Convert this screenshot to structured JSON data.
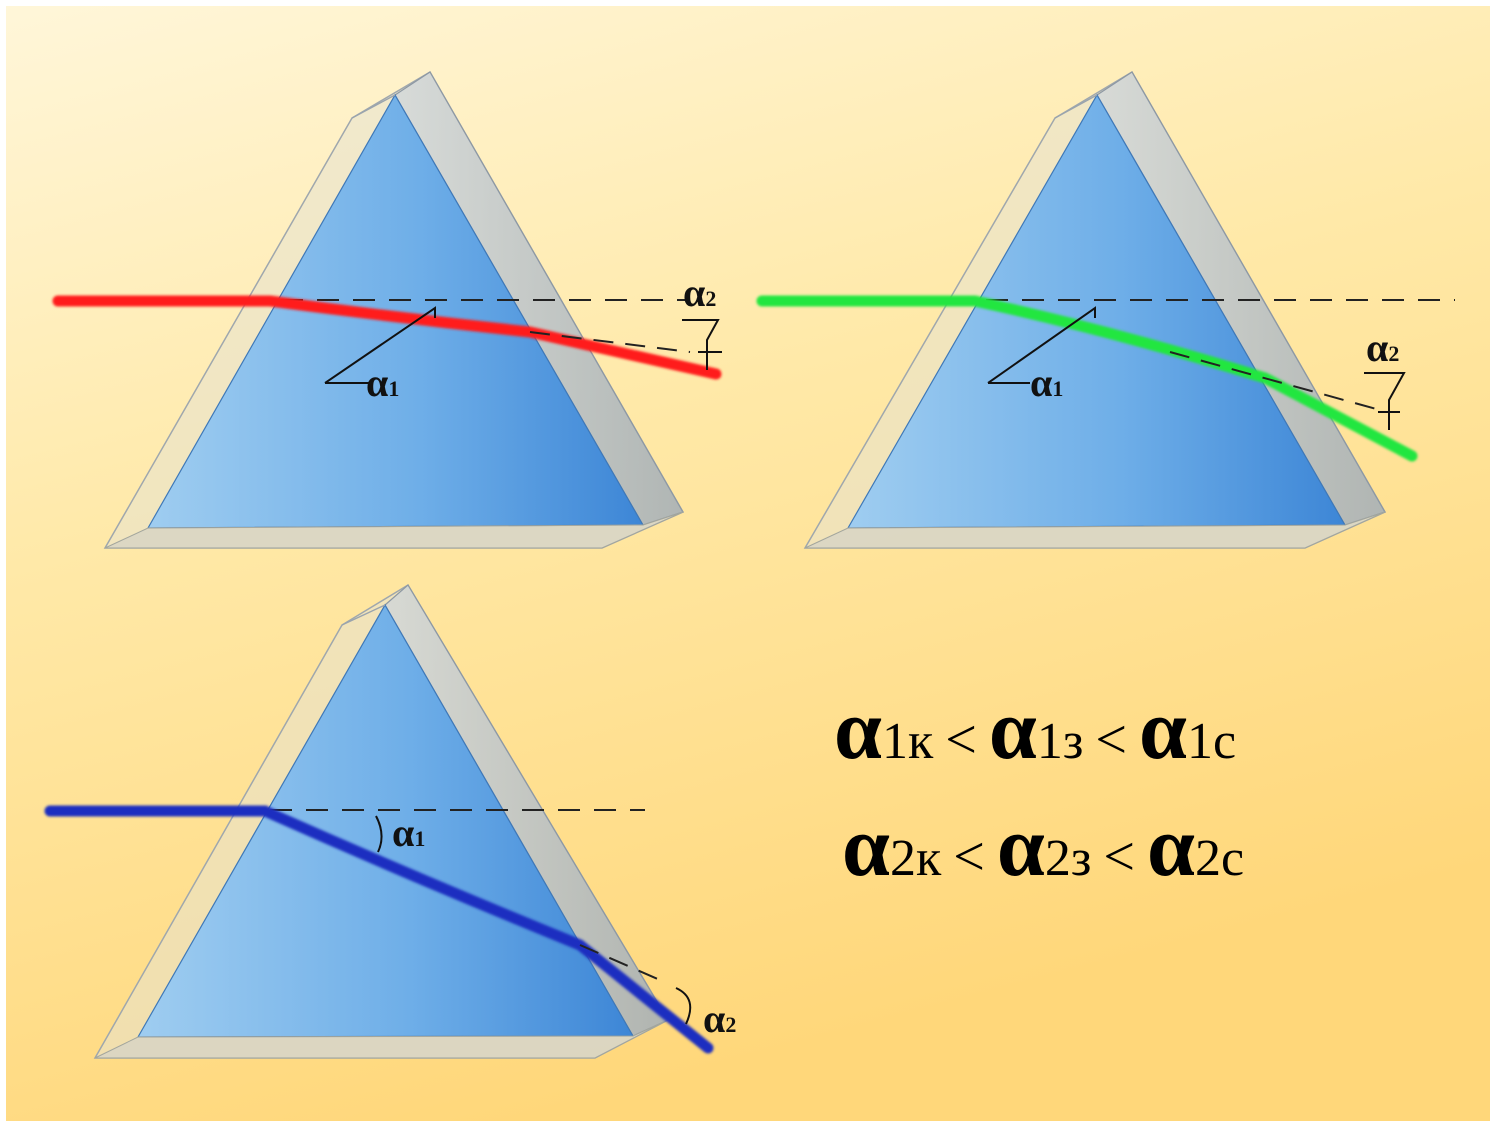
{
  "background": {
    "top_color": "#fff5d6",
    "bottom_color": "#ffd879",
    "border_color": "#ffffff"
  },
  "prism_colors": {
    "glass_face": "#4f97dc",
    "glass_edge": "#b9c3cc",
    "base_plate": "#d9d7c9"
  },
  "beams": [
    {
      "name": "red",
      "color": "#ff1a1a"
    },
    {
      "name": "green",
      "color": "#22e640"
    },
    {
      "name": "blue",
      "color": "#1e2fc0"
    }
  ],
  "labels": {
    "alpha_symbol": "α",
    "sub1": "1",
    "sub2": "2"
  },
  "equations": {
    "line1": {
      "terms": [
        {
          "symbol": "α",
          "index": "1",
          "suffix": "к",
          "suffix_color": "#e0141a"
        },
        {
          "symbol": "α",
          "index": "1",
          "suffix": "з",
          "suffix_color": "#2fe03a"
        },
        {
          "symbol": "α",
          "index": "1",
          "suffix": "с",
          "suffix_color": "#1616c8"
        }
      ],
      "operator": "<"
    },
    "line2": {
      "terms": [
        {
          "symbol": "α",
          "index": "2",
          "suffix": "к",
          "suffix_color": "#e0141a"
        },
        {
          "symbol": "α",
          "index": "2",
          "suffix": "з",
          "suffix_color": "#2fe03a"
        },
        {
          "symbol": "α",
          "index": "2",
          "suffix": "с",
          "suffix_color": "#1616c8"
        }
      ],
      "operator": "<"
    }
  }
}
